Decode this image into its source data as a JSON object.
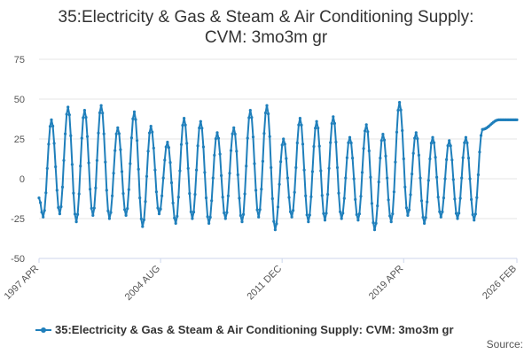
{
  "title_line1": "35:Electricity & Gas & Steam & Air Conditioning Supply:",
  "title_line2": "CVM: 3mo3m gr",
  "legend_label": "35:Electricity & Gas & Steam & Air Conditioning Supply: CVM: 3mo3m gr",
  "source_label": "Source:",
  "series_color": "#1f7fbb",
  "chart_data": {
    "type": "line",
    "title": "35:Electricity & Gas & Steam & Air Conditioning Supply: CVM: 3mo3m gr",
    "ylim": [
      -50,
      75
    ],
    "yticks": [
      75,
      50,
      25,
      0,
      -25,
      -50
    ],
    "xlim": [
      "1997-04",
      "2026-02"
    ],
    "xticks": [
      "1997 APR",
      "2004 AUG",
      "2011 DEC",
      "2019 APR",
      "2026 FEB"
    ],
    "grid": true,
    "legend_position": "bottom",
    "series": [
      {
        "name": "35:Electricity & Gas & Steam & Air Conditioning Supply: CVM: 3mo3m gr",
        "start": "1997-04",
        "frequency": "monthly",
        "peaks": [
          37,
          45,
          43,
          46,
          32,
          42,
          33,
          23,
          38,
          36,
          29,
          32,
          43,
          46,
          25,
          38,
          36,
          39,
          26,
          34,
          28,
          48,
          29,
          26,
          24,
          26,
          31,
          37
        ],
        "troughs": [
          -24,
          -22,
          -27,
          -23,
          -25,
          -23,
          -30,
          -22,
          -28,
          -25,
          -28,
          -25,
          -27,
          -24,
          -32,
          -24,
          -27,
          -26,
          -25,
          -26,
          -32,
          -27,
          -23,
          -28,
          -24,
          -25,
          -26
        ],
        "values_note_free": true
      }
    ]
  }
}
